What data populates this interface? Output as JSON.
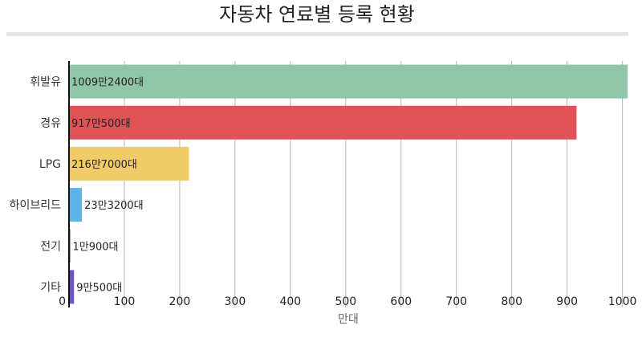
{
  "chart_data": {
    "type": "bar",
    "orientation": "horizontal",
    "title": "자동차 연료별 등록 현황",
    "xlabel": "만대",
    "ylabel": "",
    "xlim": [
      0,
      1009.24
    ],
    "xticks": [
      0,
      100,
      200,
      300,
      400,
      500,
      600,
      700,
      800,
      900,
      1000
    ],
    "grid": true,
    "legend": "none",
    "categories": [
      "휘발유",
      "경유",
      "LPG",
      "하이브리드",
      "전기",
      "기타"
    ],
    "values": [
      1009.24,
      917.05,
      216.7,
      23.32,
      1.09,
      9.05
    ],
    "labels": [
      "1009만2400대",
      "917만500대",
      "216만7000대",
      "23만3200대",
      "1만900대",
      "9만500대"
    ],
    "colors": [
      "#8fc5a8",
      "#e05256",
      "#f0cb68",
      "#5bb4e5",
      "#4a4a8a",
      "#7052c7"
    ],
    "label_colors": [
      "#222222",
      "#ffffff",
      "#222222",
      "#222222",
      "#222222",
      "#222222"
    ]
  }
}
